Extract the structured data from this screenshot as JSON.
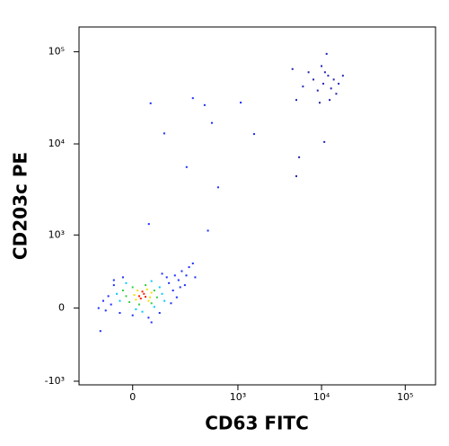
{
  "chart_data": {
    "type": "scatter",
    "x_label": "CD63 FITC",
    "y_label": "CD203c PE",
    "xscale": "biexponential",
    "yscale": "biexponential",
    "xlim": [
      -230,
      230000
    ],
    "ylim": [
      -1100,
      186000
    ],
    "xticks": [
      0,
      {
        "value": 1000,
        "label": "10³"
      },
      {
        "value": 10000,
        "label": "10⁴"
      },
      {
        "value": 100000,
        "label": "10⁵"
      }
    ],
    "yticks": [
      {
        "value": -1000,
        "label": "-10³"
      },
      0,
      {
        "value": 1000,
        "label": "10³"
      },
      {
        "value": 10000,
        "label": "10⁴"
      },
      {
        "value": 100000,
        "label": "10⁵"
      }
    ],
    "series": [
      {
        "color": "#1a2cff",
        "x": [
          -80,
          -60,
          -70,
          130,
          150,
          160,
          200,
          250,
          120,
          180,
          -30,
          0,
          50,
          90,
          140,
          -90,
          220,
          280,
          300,
          -100,
          -40,
          100,
          170,
          60,
          230,
          -120,
          -60,
          190,
          -112,
          57,
          280,
          394,
          109,
          232,
          484,
          577,
          1080,
          1565,
          51,
          433
        ],
        "values": [
          100,
          200,
          30,
          220,
          150,
          300,
          350,
          400,
          280,
          250,
          280,
          -60,
          -80,
          -40,
          40,
          -20,
          200,
          450,
          280,
          60,
          -40,
          320,
          90,
          -120,
          300,
          0,
          250,
          180,
          -200,
          27600,
          31400,
          26400,
          13000,
          5600,
          16900,
          3370,
          28100,
          12800,
          1330,
          1120
        ]
      },
      {
        "color": "#00c8ff",
        "x": [
          -40,
          90,
          -20,
          60,
          100,
          -50,
          10,
          70,
          30,
          110
        ],
        "values": [
          60,
          180,
          220,
          240,
          120,
          120,
          -10,
          10,
          -30,
          60
        ]
      },
      {
        "color": "#30d040",
        "x": [
          -20,
          70,
          0,
          40,
          80,
          -10,
          20,
          60,
          -30
        ],
        "values": [
          100,
          150,
          180,
          200,
          90,
          50,
          30,
          40,
          150
        ]
      },
      {
        "color": "#f0e000",
        "x": [
          5,
          55,
          15,
          45,
          60,
          10,
          50
        ],
        "values": [
          110,
          90,
          150,
          160,
          130,
          70,
          60
        ]
      },
      {
        "color": "#ff2000",
        "x": [
          20,
          35,
          25,
          40,
          30
        ],
        "values": [
          100,
          120,
          80,
          95,
          140
        ]
      },
      {
        "color": "#2020b0",
        "x": [
          10500,
          12000,
          9000,
          14000,
          11000,
          8000,
          13000,
          10000,
          16000,
          7000,
          12500,
          6000,
          18000,
          9500,
          11500,
          4500,
          15000,
          5000,
          5400,
          5000,
          10800
        ],
        "values": [
          45000,
          55000,
          38000,
          50000,
          60000,
          50000,
          40000,
          70000,
          45000,
          60000,
          30000,
          42000,
          55000,
          28000,
          95000,
          65000,
          35000,
          30000,
          7160,
          4460,
          10500
        ]
      }
    ]
  }
}
